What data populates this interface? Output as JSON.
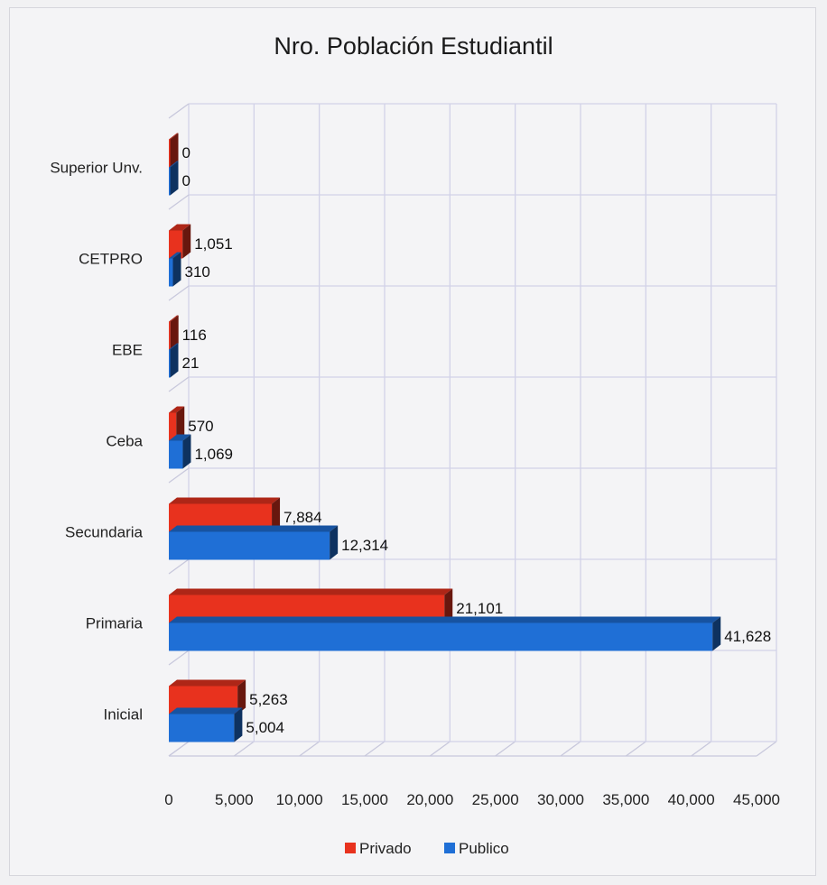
{
  "chart_data": {
    "type": "bar",
    "orientation": "horizontal",
    "title": "Nro. Población Estudiantil",
    "categories": [
      "Inicial",
      "Primaria",
      "Secundaria",
      "Ceba",
      "EBE",
      "CETPRO",
      "Superior Unv."
    ],
    "series": [
      {
        "name": "Privado",
        "color": "#e8321e",
        "values": [
          5263,
          21101,
          7884,
          570,
          116,
          1051,
          0
        ],
        "labels": [
          "5,263",
          "21,101",
          "7,884",
          "570",
          "116",
          "1,051",
          "0"
        ]
      },
      {
        "name": "Publico",
        "color": "#1f6fd6",
        "values": [
          5004,
          41628,
          12314,
          1069,
          21,
          310,
          0
        ],
        "labels": [
          "5,004",
          "41,628",
          "12,314",
          "1,069",
          "21",
          "310",
          "0"
        ]
      }
    ],
    "xlim": [
      0,
      45000
    ],
    "ticks": [
      0,
      5000,
      10000,
      15000,
      20000,
      25000,
      30000,
      35000,
      40000,
      45000
    ],
    "tick_labels": [
      "0",
      "5,000",
      "10,000",
      "15,000",
      "20,000",
      "25,000",
      "30,000",
      "35,000",
      "40,000",
      "45,000"
    ],
    "grid": true,
    "legend": "bottom"
  }
}
